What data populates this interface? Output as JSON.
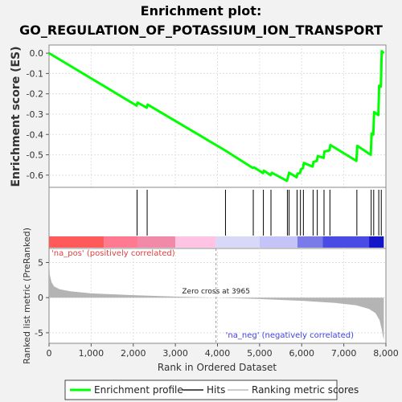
{
  "title_line1": "Enrichment plot:",
  "title_line2": "GO_REGULATION_OF_POTASSIUM_ION_TRANSPORT",
  "legend": {
    "enrichment_profile": "Enrichment profile",
    "hits": "Hits",
    "ranking_metric": "Ranking metric scores"
  },
  "colors": {
    "enrichment_line": "#00ff00",
    "hit_line": "#000000",
    "metric_fill": "#b4b4b4",
    "pos_label": "#e04040",
    "neg_label": "#4040e0"
  },
  "chart_data": [
    {
      "type": "line",
      "name": "enrichment-score",
      "ylabel": "Enrichment score (ES)",
      "xlim": [
        0,
        8000
      ],
      "ylim": [
        -0.66,
        0.04
      ],
      "yticks": [
        0.0,
        -0.1,
        -0.2,
        -0.3,
        -0.4,
        -0.5,
        -0.6
      ],
      "ytick_labels": [
        "0.0",
        "-0.1",
        "-0.2",
        "-0.3",
        "-0.4",
        "-0.5",
        "-0.6"
      ],
      "grid": true,
      "x": [
        0,
        2080,
        2100,
        2320,
        2340,
        4180,
        4840,
        4870,
        5080,
        5100,
        5260,
        5290,
        5650,
        5680,
        5700,
        5880,
        5900,
        5960,
        5980,
        6030,
        6050,
        6260,
        6280,
        6360,
        6380,
        6520,
        6540,
        6660,
        6680,
        7300,
        7320,
        7640,
        7660,
        7700,
        7720,
        7820,
        7840,
        7880,
        7900,
        7950
      ],
      "y": [
        0.0,
        -0.258,
        -0.243,
        -0.268,
        -0.253,
        -0.478,
        -0.565,
        -0.562,
        -0.59,
        -0.578,
        -0.6,
        -0.588,
        -0.628,
        -0.605,
        -0.588,
        -0.61,
        -0.592,
        -0.59,
        -0.572,
        -0.566,
        -0.54,
        -0.558,
        -0.535,
        -0.53,
        -0.506,
        -0.515,
        -0.484,
        -0.478,
        -0.452,
        -0.53,
        -0.456,
        -0.5,
        -0.395,
        -0.4,
        -0.29,
        -0.305,
        -0.16,
        -0.165,
        0.01,
        0.0
      ]
    },
    {
      "type": "hits",
      "name": "gene-hits",
      "x": [
        2090,
        2330,
        4190,
        4850,
        5090,
        5270,
        5660,
        5700,
        5890,
        5970,
        6040,
        6270,
        6370,
        6530,
        6670,
        7310,
        7650,
        7710,
        7830,
        7890
      ]
    },
    {
      "type": "heatmap",
      "name": "rank-color-bar",
      "segments": [
        {
          "from": 0,
          "to": 1300,
          "color": "#ff5a5a"
        },
        {
          "from": 1300,
          "to": 2100,
          "color": "#ff7a90"
        },
        {
          "from": 2100,
          "to": 3000,
          "color": "#f08aa8"
        },
        {
          "from": 3000,
          "to": 3965,
          "color": "#ffc4e4"
        },
        {
          "from": 3965,
          "to": 5000,
          "color": "#d8d8f8"
        },
        {
          "from": 5000,
          "to": 5900,
          "color": "#c4c4f8"
        },
        {
          "from": 5900,
          "to": 6500,
          "color": "#7a7ae8"
        },
        {
          "from": 6500,
          "to": 7600,
          "color": "#4a4ae4"
        },
        {
          "from": 7600,
          "to": 7950,
          "color": "#1414c8"
        }
      ]
    },
    {
      "type": "area",
      "name": "ranked-list-metric",
      "ylabel": "Ranked list metric (PreRanked)",
      "xlabel": "Rank in Ordered Dataset",
      "xlim": [
        0,
        8000
      ],
      "ylim": [
        -6.5,
        7
      ],
      "yticks": [
        5,
        0,
        -5
      ],
      "ytick_labels": [
        "5",
        "0",
        "-5"
      ],
      "xticks": [
        0,
        1000,
        2000,
        3000,
        4000,
        5000,
        6000,
        7000,
        8000
      ],
      "xtick_labels": [
        "0",
        "1,000",
        "2,000",
        "3,000",
        "4,000",
        "5,000",
        "6,000",
        "7,000",
        "8,000"
      ],
      "x": [
        0,
        20,
        60,
        120,
        250,
        500,
        1000,
        2000,
        3000,
        3965,
        5000,
        6000,
        6800,
        7300,
        7600,
        7750,
        7850,
        7900,
        7930,
        7950
      ],
      "y": [
        5.5,
        3.2,
        2.2,
        1.6,
        1.2,
        0.9,
        0.6,
        0.35,
        0.15,
        0.0,
        -0.2,
        -0.45,
        -0.75,
        -1.1,
        -1.6,
        -2.2,
        -3.2,
        -4.5,
        -5.5,
        -6.0
      ],
      "annotations": {
        "pos_label": "'na_pos' (positively correlated)",
        "neg_label": "'na_neg' (negatively correlated)",
        "zero_cross": "Zero cross at 3965"
      },
      "zero_cross_x": 3965
    }
  ]
}
